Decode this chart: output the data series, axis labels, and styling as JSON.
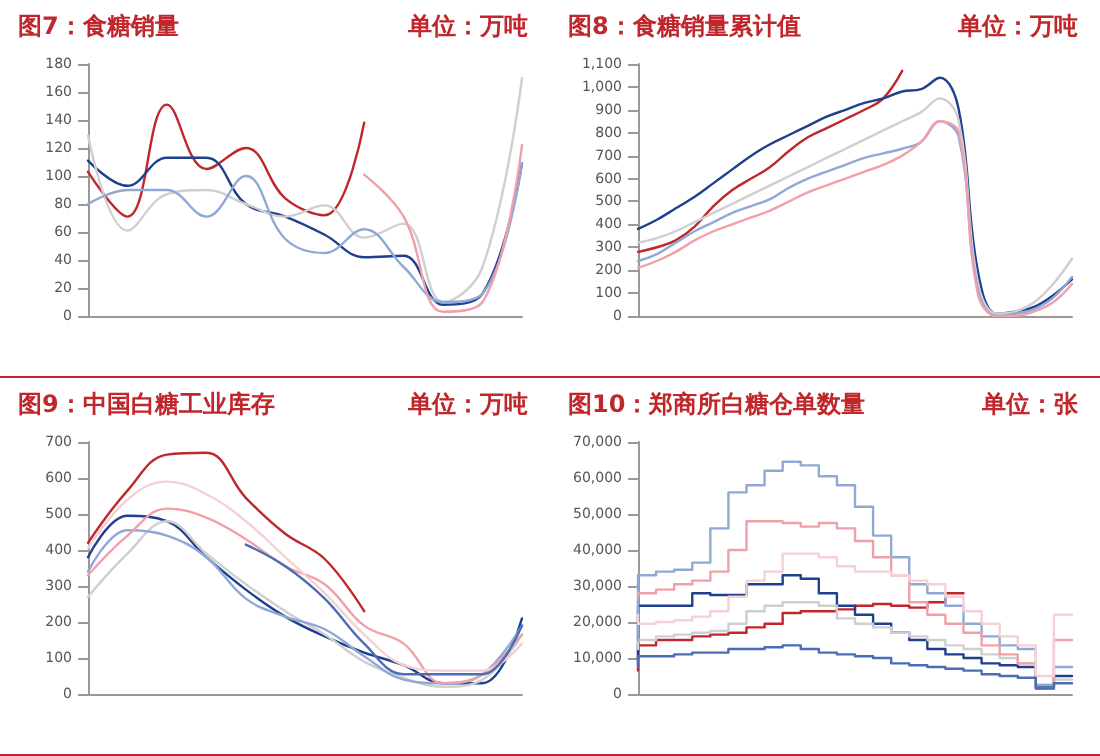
{
  "chart_data": [
    {
      "type": "line",
      "title": "图7：食糖销量",
      "subtitle": "单位：万吨",
      "categories": [
        null,
        null,
        null,
        null,
        null,
        null,
        null,
        null,
        null,
        null,
        null,
        null
      ],
      "ylim": [
        0,
        180
      ],
      "yticks": [
        0,
        20,
        40,
        60,
        80,
        100,
        120,
        140,
        160,
        180
      ],
      "tick_labels": "y",
      "series": [
        {
          "color": "#c0272d",
          "values": [
            103,
            71,
            151,
            105,
            120,
            84,
            72,
            138,
            null,
            null,
            null,
            null
          ]
        },
        {
          "color": "#1f3f8f",
          "values": [
            111,
            93,
            113,
            113,
            80,
            71,
            58,
            42,
            43,
            8,
            16,
            109
          ]
        },
        {
          "color": "#cfcfcf",
          "values": [
            129,
            61,
            87,
            90,
            80,
            71,
            79,
            56,
            66,
            10,
            35,
            170
          ]
        },
        {
          "color": "#8fa9d6",
          "values": [
            80,
            90,
            90,
            71,
            100,
            55,
            45,
            62,
            35,
            10,
            16,
            109
          ]
        },
        {
          "color": "#f0a0a8",
          "values": [
            null,
            null,
            null,
            null,
            null,
            null,
            null,
            101,
            71,
            3,
            10,
            122
          ]
        }
      ]
    },
    {
      "type": "line",
      "title": "图8：食糖销量累计值",
      "subtitle": "单位：万吨",
      "categories": [
        null,
        null,
        null,
        null,
        null,
        null,
        null,
        null,
        null,
        null,
        null,
        null,
        null,
        null,
        null,
        null,
        null,
        null,
        null,
        null,
        null,
        null,
        null,
        null
      ],
      "ylim": [
        0,
        1100
      ],
      "yticks": [
        0,
        100,
        200,
        300,
        400,
        500,
        600,
        700,
        800,
        900,
        {
          "value": 1000,
          "label": "1,000"
        },
        {
          "value": 1100,
          "label": "1,100"
        }
      ],
      "tick_labels": "y",
      "series": [
        {
          "color": "#c0272d",
          "values": [
            280,
            300,
            330,
            390,
            480,
            550,
            600,
            650,
            720,
            780,
            820,
            860,
            900,
            950,
            1070,
            null,
            null,
            null,
            null,
            null,
            null,
            null,
            null,
            null
          ]
        },
        {
          "color": "#1f3f8f",
          "values": [
            380,
            420,
            470,
            520,
            580,
            640,
            700,
            750,
            790,
            830,
            870,
            900,
            930,
            950,
            980,
            990,
            1040,
            900,
            200,
            10,
            20,
            40,
            90,
            160
          ]
        },
        {
          "color": "#cfcfcf",
          "values": [
            320,
            340,
            370,
            410,
            450,
            490,
            530,
            570,
            610,
            650,
            690,
            730,
            770,
            810,
            850,
            890,
            950,
            850,
            150,
            10,
            20,
            60,
            140,
            250
          ]
        },
        {
          "color": "#8fa9d6",
          "values": [
            240,
            270,
            320,
            370,
            410,
            450,
            480,
            510,
            560,
            600,
            630,
            660,
            690,
            710,
            730,
            760,
            850,
            780,
            120,
            0,
            10,
            30,
            80,
            170
          ]
        },
        {
          "color": "#f0a0a8",
          "values": [
            210,
            240,
            280,
            330,
            370,
            400,
            430,
            460,
            500,
            540,
            570,
            600,
            630,
            660,
            700,
            760,
            850,
            800,
            100,
            0,
            0,
            20,
            60,
            140
          ]
        }
      ]
    },
    {
      "type": "line",
      "title": "图9：中国白糖工业库存",
      "subtitle": "单位：万吨",
      "categories": [
        null,
        null,
        null,
        null,
        null,
        null,
        null,
        null,
        null,
        null,
        null,
        null
      ],
      "ylim": [
        0,
        700
      ],
      "yticks": [
        0,
        100,
        200,
        300,
        400,
        500,
        600,
        700
      ],
      "tick_labels": "y",
      "series": [
        {
          "color": "#c0272d",
          "values": [
            420,
            565,
            665,
            670,
            545,
            445,
            375,
            230,
            null,
            null,
            null,
            null
          ]
        },
        {
          "color": "#1f3f8f",
          "values": [
            380,
            495,
            480,
            380,
            290,
            215,
            160,
            115,
            80,
            30,
            30,
            210
          ]
        },
        {
          "color": "#cfcfcf",
          "values": [
            270,
            390,
            480,
            390,
            305,
            230,
            165,
            90,
            45,
            20,
            40,
            165
          ]
        },
        {
          "color": "#8fa9d6",
          "values": [
            340,
            455,
            440,
            380,
            265,
            215,
            180,
            105,
            40,
            30,
            55,
            190
          ]
        },
        {
          "color": "#f0a0a8",
          "values": [
            330,
            440,
            515,
            490,
            430,
            355,
            305,
            190,
            140,
            30,
            55,
            165
          ]
        },
        {
          "color": "#f5d0d4",
          "values": [
            405,
            540,
            590,
            555,
            480,
            380,
            280,
            165,
            80,
            65,
            65,
            140
          ]
        },
        {
          "color": "#4a6db5",
          "values": [
            null,
            null,
            null,
            null,
            415,
            355,
            265,
            140,
            55,
            55,
            55,
            190
          ]
        }
      ]
    },
    {
      "type": "step",
      "title": "图10：郑商所白糖仓单数量",
      "subtitle": "单位：张",
      "categories": [
        null,
        null,
        null,
        null,
        null,
        null,
        null,
        null,
        null,
        null,
        null,
        null,
        null,
        null,
        null,
        null,
        null,
        null,
        null,
        null,
        null,
        null,
        null,
        null,
        null
      ],
      "ylim": [
        0,
        70000
      ],
      "yticks": [
        0,
        {
          "value": 10000,
          "label": "10,000"
        },
        {
          "value": 20000,
          "label": "20,000"
        },
        {
          "value": 30000,
          "label": "30,000"
        },
        {
          "value": 40000,
          "label": "40,000"
        },
        {
          "value": 50000,
          "label": "50,000"
        },
        {
          "value": 60000,
          "label": "60,000"
        },
        {
          "value": 70000,
          "label": "70,000"
        }
      ],
      "tick_labels": "y",
      "series": [
        {
          "color": "#c0272d",
          "values": [
            6500,
            13500,
            15000,
            15000,
            16000,
            16500,
            17000,
            18500,
            19500,
            22500,
            23000,
            23000,
            23500,
            24500,
            25000,
            24500,
            24000,
            25500,
            28000,
            null,
            null,
            null,
            null,
            null,
            null
          ]
        },
        {
          "color": "#1f3f8f",
          "values": [
            10000,
            24500,
            24500,
            24500,
            28000,
            27500,
            27500,
            30500,
            30500,
            33000,
            32000,
            28000,
            24500,
            22000,
            19500,
            17000,
            15000,
            12500,
            11000,
            10000,
            8500,
            8000,
            7500,
            2000,
            5000
          ]
        },
        {
          "color": "#cfcfcf",
          "values": [
            12500,
            15000,
            16000,
            16500,
            17000,
            17500,
            19500,
            23000,
            24500,
            25500,
            25500,
            24500,
            21000,
            19500,
            18500,
            17000,
            16000,
            15000,
            13500,
            12500,
            11000,
            10000,
            8500,
            2500,
            4000
          ]
        },
        {
          "color": "#8fa9d6",
          "values": [
            15000,
            33000,
            34000,
            34500,
            36500,
            46000,
            56000,
            58000,
            62000,
            64500,
            63500,
            60500,
            58000,
            52000,
            44000,
            38000,
            30500,
            28000,
            24500,
            19500,
            16000,
            13500,
            12500,
            2500,
            7500
          ]
        },
        {
          "color": "#f0a0a8",
          "values": [
            27000,
            28000,
            29000,
            30500,
            31500,
            34000,
            40000,
            48000,
            48000,
            47500,
            46500,
            47500,
            46000,
            42500,
            38000,
            33000,
            25500,
            22000,
            19500,
            17000,
            13500,
            11000,
            8500,
            1500,
            15000
          ]
        },
        {
          "color": "#f5d0d4",
          "values": [
            22000,
            19500,
            20000,
            20500,
            21500,
            23000,
            27000,
            31500,
            34000,
            39000,
            39000,
            38000,
            35500,
            34000,
            34000,
            33000,
            31500,
            30500,
            27000,
            23000,
            19500,
            16000,
            13500,
            5000,
            22000
          ]
        },
        {
          "color": "#4a6db5",
          "values": [
            7500,
            10500,
            10500,
            11000,
            11500,
            11500,
            12500,
            12500,
            13000,
            13500,
            12500,
            11500,
            11000,
            10500,
            10000,
            8500,
            8000,
            7500,
            7000,
            6500,
            5500,
            5000,
            4500,
            1500,
            3000
          ]
        }
      ]
    }
  ]
}
